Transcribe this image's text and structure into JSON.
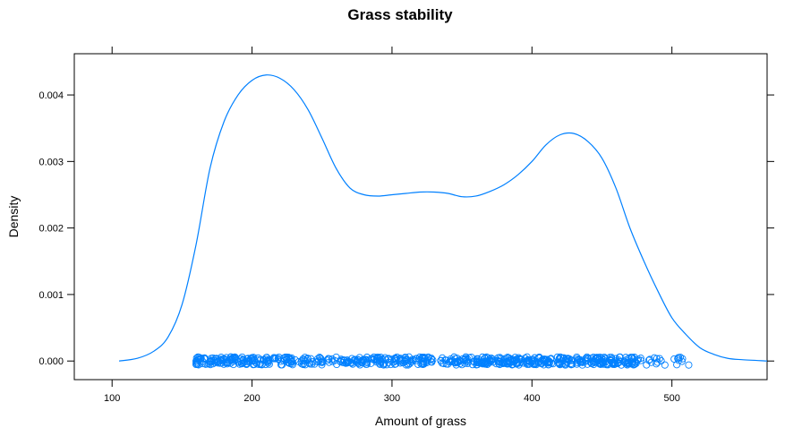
{
  "chart_data": {
    "type": "density",
    "title": "Grass stability",
    "xlabel": "Amount of grass",
    "ylabel": "Density",
    "xlim": [
      73,
      568
    ],
    "ylim": [
      -0.00028,
      0.00462
    ],
    "x_ticks": [
      100,
      200,
      300,
      400,
      500
    ],
    "x_tick_labels": [
      "100",
      "200",
      "300",
      "400",
      "500"
    ],
    "y_ticks": [
      0.0,
      0.001,
      0.002,
      0.003,
      0.004
    ],
    "y_tick_labels": [
      "0.000",
      "0.001",
      "0.002",
      "0.003",
      "0.004"
    ],
    "grid": false,
    "legend": "none",
    "line_color": "#0080ff",
    "series": [
      {
        "x": [
          105,
          118,
          130,
          140,
          150,
          160,
          170,
          180,
          190,
          200,
          210,
          220,
          230,
          240,
          250,
          260,
          270,
          280,
          290,
          300,
          310,
          320,
          330,
          340,
          350,
          360,
          370,
          380,
          390,
          400,
          410,
          420,
          430,
          440,
          450,
          460,
          470,
          480,
          490,
          500,
          510,
          520,
          530,
          540,
          550,
          568
        ],
        "y": [
          0.0,
          4e-05,
          0.00015,
          0.00036,
          0.00085,
          0.00175,
          0.0029,
          0.0036,
          0.004,
          0.00422,
          0.0043,
          0.00425,
          0.00408,
          0.00378,
          0.00335,
          0.0029,
          0.0026,
          0.0025,
          0.00248,
          0.0025,
          0.00252,
          0.00254,
          0.00254,
          0.00252,
          0.00247,
          0.00248,
          0.00255,
          0.00265,
          0.0028,
          0.003,
          0.00325,
          0.0034,
          0.00342,
          0.0033,
          0.00305,
          0.0026,
          0.002,
          0.0015,
          0.00105,
          0.00065,
          0.0004,
          0.0002,
          0.0001,
          4e-05,
          2e-05,
          0.0
        ]
      }
    ],
    "rug": {
      "x_range": [
        160,
        512
      ],
      "y": 0.0,
      "marker": "open-circle"
    }
  }
}
